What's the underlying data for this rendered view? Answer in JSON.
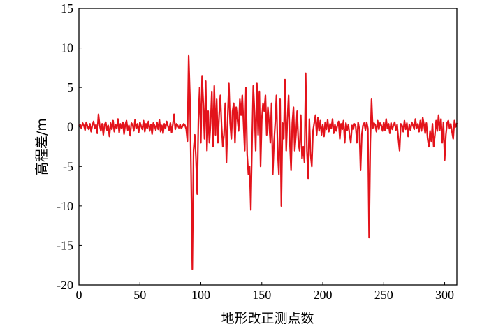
{
  "chart_data": {
    "type": "line",
    "title": "",
    "xlabel": "地形改正测点数",
    "ylabel": "高程差/m",
    "xlim": [
      0,
      310
    ],
    "ylim": [
      -20,
      15
    ],
    "xticks": [
      0,
      50,
      100,
      150,
      200,
      250,
      300
    ],
    "yticks": [
      -20,
      -15,
      -10,
      -5,
      0,
      5,
      10,
      15
    ],
    "grid": false,
    "legend": "none",
    "series": [
      {
        "color": "#e3131b",
        "x": [
          0,
          1,
          2,
          3,
          4,
          5,
          6,
          7,
          8,
          9,
          10,
          11,
          12,
          13,
          14,
          15,
          16,
          17,
          18,
          19,
          20,
          21,
          22,
          23,
          24,
          25,
          26,
          27,
          28,
          29,
          30,
          31,
          32,
          33,
          34,
          35,
          36,
          37,
          38,
          39,
          40,
          41,
          42,
          43,
          44,
          45,
          46,
          47,
          48,
          49,
          50,
          51,
          52,
          53,
          54,
          55,
          56,
          57,
          58,
          59,
          60,
          61,
          62,
          63,
          64,
          65,
          66,
          67,
          68,
          69,
          70,
          71,
          72,
          73,
          74,
          75,
          76,
          77,
          78,
          79,
          80,
          81,
          82,
          83,
          84,
          85,
          86,
          87,
          88,
          89,
          90,
          91,
          92,
          93,
          94,
          95,
          96,
          97,
          98,
          99,
          100,
          101,
          102,
          103,
          104,
          105,
          106,
          107,
          108,
          109,
          110,
          111,
          112,
          113,
          114,
          115,
          116,
          117,
          118,
          119,
          120,
          121,
          122,
          123,
          124,
          125,
          126,
          127,
          128,
          129,
          130,
          131,
          132,
          133,
          134,
          135,
          136,
          137,
          138,
          139,
          140,
          141,
          142,
          143,
          144,
          145,
          146,
          147,
          148,
          149,
          150,
          151,
          152,
          153,
          154,
          155,
          156,
          157,
          158,
          159,
          160,
          161,
          162,
          163,
          164,
          165,
          166,
          167,
          168,
          169,
          170,
          171,
          172,
          173,
          174,
          175,
          176,
          177,
          178,
          179,
          180,
          181,
          182,
          183,
          184,
          185,
          186,
          187,
          188,
          189,
          190,
          191,
          192,
          193,
          194,
          195,
          196,
          197,
          198,
          199,
          200,
          201,
          202,
          203,
          204,
          205,
          206,
          207,
          208,
          209,
          210,
          211,
          212,
          213,
          214,
          215,
          216,
          217,
          218,
          219,
          220,
          221,
          222,
          223,
          224,
          225,
          226,
          227,
          228,
          229,
          230,
          231,
          232,
          233,
          234,
          235,
          236,
          237,
          238,
          239,
          240,
          241,
          242,
          243,
          244,
          245,
          246,
          247,
          248,
          249,
          250,
          251,
          252,
          253,
          254,
          255,
          256,
          257,
          258,
          259,
          260,
          261,
          262,
          263,
          264,
          265,
          266,
          267,
          268,
          269,
          270,
          271,
          272,
          273,
          274,
          275,
          276,
          277,
          278,
          279,
          280,
          281,
          282,
          283,
          284,
          285,
          286,
          287,
          288,
          289,
          290,
          291,
          292,
          293,
          294,
          295,
          296,
          297,
          298,
          299,
          300,
          301,
          302,
          303,
          304,
          305,
          306,
          307,
          308,
          309,
          310
        ],
        "y": [
          0.1,
          0.3,
          -0.2,
          0.5,
          0.2,
          -0.4,
          0.6,
          0.1,
          -0.3,
          0.4,
          -0.6,
          0.2,
          0.7,
          -0.2,
          0.3,
          -0.8,
          1.6,
          0.2,
          -0.5,
          0.4,
          -1.0,
          0.3,
          0.6,
          -0.4,
          0.2,
          -1.2,
          0.5,
          -0.3,
          0.8,
          -0.6,
          0.3,
          -0.2,
          1.0,
          -0.7,
          0.4,
          -0.2,
          0.6,
          -0.9,
          0.3,
          0.8,
          -0.4,
          0.2,
          -1.1,
          0.5,
          0.3,
          -0.5,
          0.9,
          -0.2,
          0.4,
          -0.7,
          0.6,
          0.1,
          -0.3,
          0.8,
          -0.6,
          0.4,
          -0.2,
          0.7,
          -0.5,
          0.3,
          -0.9,
          0.5,
          0.2,
          -0.4,
          0.6,
          -0.3,
          0.9,
          -0.6,
          0.2,
          -0.8,
          0.4,
          -0.2,
          0.7,
          0.1,
          -0.4,
          0.5,
          -0.7,
          0.3,
          1.6,
          -0.3,
          0.4,
          0.2,
          -0.1,
          0.3,
          -0.2,
          0.1,
          0.4,
          0.2,
          -0.3,
          -1.8,
          9.0,
          4.0,
          -6.0,
          -18.0,
          -3.0,
          -1.0,
          -4.0,
          -8.5,
          1.0,
          5.0,
          -2.0,
          6.4,
          3.0,
          -1.5,
          5.8,
          -3.0,
          2.0,
          -2.0,
          0.5,
          4.5,
          -2.5,
          5.2,
          -1.0,
          3.5,
          -2.0,
          1.5,
          4.0,
          0.2,
          -2.5,
          -1.0,
          3.0,
          -4.5,
          1.0,
          5.5,
          0.5,
          -1.5,
          2.0,
          3.0,
          -2.0,
          2.5,
          1.0,
          -0.5,
          3.5,
          1.5,
          4.0,
          0.5,
          -3.0,
          5.0,
          -3.5,
          -6.0,
          -5.0,
          -10.5,
          -2.0,
          5.2,
          2.0,
          -3.0,
          5.5,
          -1.0,
          4.5,
          -5.0,
          1.0,
          3.0,
          2.0,
          4.0,
          -1.0,
          2.5,
          0.5,
          -2.0,
          3.0,
          -6.0,
          -2.0,
          0.5,
          4.0,
          -3.0,
          -6.0,
          3.5,
          -10.0,
          0.5,
          -1.5,
          6.0,
          -3.0,
          1.0,
          4.0,
          -2.0,
          -5.5,
          0.5,
          2.5,
          -3.0,
          -1.0,
          2.0,
          -2.0,
          -3.0,
          1.5,
          -4.0,
          -2.5,
          -4.5,
          6.8,
          -3.0,
          -6.5,
          1.0,
          -3.5,
          -5.0,
          -0.5,
          0.5,
          1.5,
          -1.0,
          1.2,
          -0.5,
          0.8,
          -1.0,
          0.3,
          -1.2,
          0.6,
          -0.3,
          0.9,
          -0.6,
          0.4,
          -0.2,
          1.0,
          -0.8,
          0.3,
          -0.5,
          0.2,
          0.7,
          -1.5,
          0.4,
          -0.3,
          0.8,
          -2.0,
          0.5,
          -0.4,
          0.3,
          -1.0,
          -2.0,
          0.2,
          -0.3,
          0.4,
          0.1,
          -2.0,
          0.6,
          -0.3,
          -5.5,
          -1.0,
          0.2,
          0.5,
          -0.4,
          0.6,
          -0.2,
          -14.0,
          -2.0,
          3.5,
          -0.2,
          0.5,
          0.3,
          -0.6,
          0.8,
          -0.3,
          0.5,
          0.2,
          -0.5,
          0.6,
          -0.4,
          1.0,
          -0.2,
          0.4,
          -0.8,
          0.5,
          -0.3,
          0.2,
          0.6,
          -0.4,
          0.3,
          -1.5,
          -3.0,
          0.4,
          0.2,
          -0.6,
          0.8,
          -0.3,
          0.5,
          -1.2,
          0.3,
          -0.4,
          0.6,
          0.2,
          -0.3,
          1.0,
          -0.2,
          0.4,
          -0.6,
          0.8,
          -0.5,
          1.2,
          0.3,
          -0.8,
          0.5,
          -1.5,
          -2.5,
          -0.5,
          -1.8,
          0.4,
          -2.5,
          -1.0,
          0.8,
          -0.5,
          1.5,
          -0.4,
          1.0,
          -2.0,
          0.6,
          -4.2,
          -1.0,
          0.5,
          0.8,
          -0.2,
          0.4,
          -0.6,
          -1.5,
          0.8,
          0.0,
          0.5
        ]
      }
    ]
  }
}
